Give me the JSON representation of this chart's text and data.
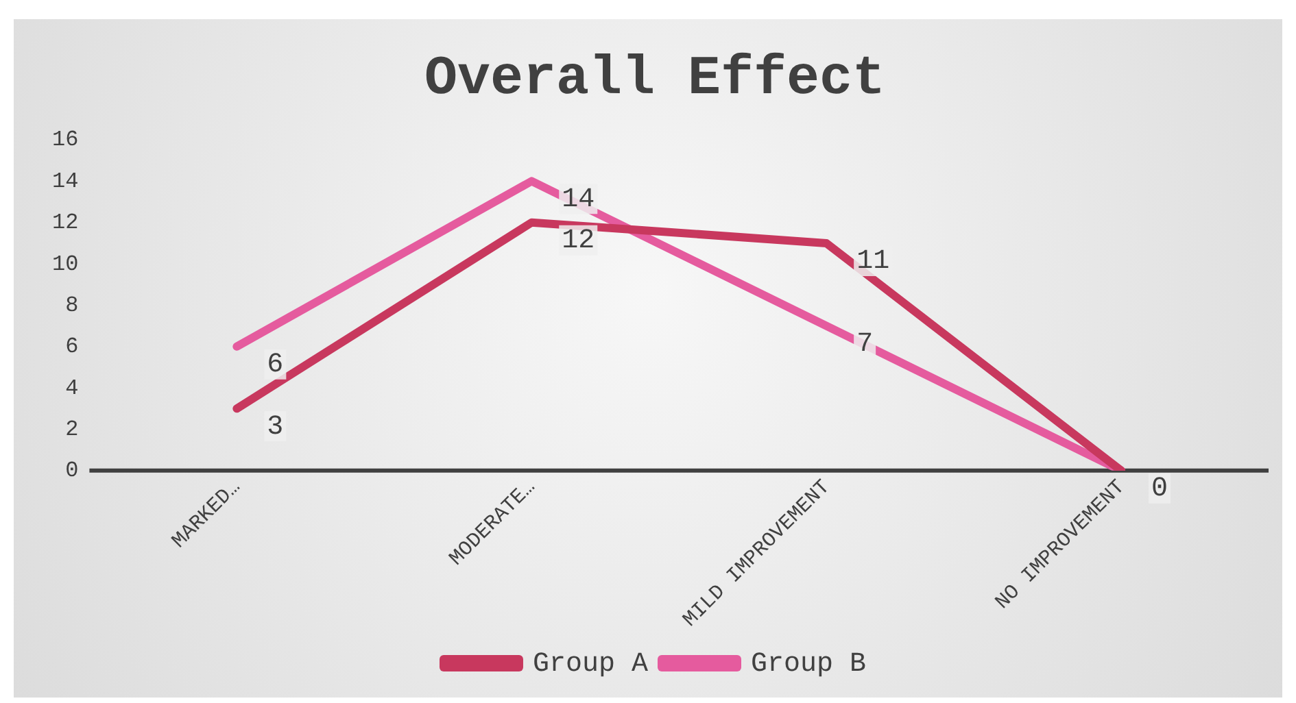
{
  "chart_data": {
    "type": "line",
    "title": "Overall Effect",
    "categories": [
      "MARKED…",
      "MODERATE…",
      "MILD IMPROVEMENT",
      "NO IMPROVEMENT"
    ],
    "series": [
      {
        "name": "Group A",
        "color": "#c8385e",
        "values": [
          3,
          12,
          11,
          0
        ],
        "value_labels": [
          "3",
          "12",
          "11",
          "0"
        ]
      },
      {
        "name": "Group B",
        "color": "#e55b9e",
        "values": [
          6,
          14,
          7,
          0
        ],
        "value_labels": [
          "6",
          "14",
          "7",
          null
        ]
      }
    ],
    "ylim": [
      0,
      16
    ],
    "yticks": [
      0,
      2,
      4,
      6,
      8,
      10,
      12,
      14,
      16
    ],
    "grid": false,
    "legend": "bottom",
    "marker": "none",
    "line_style": "solid"
  }
}
